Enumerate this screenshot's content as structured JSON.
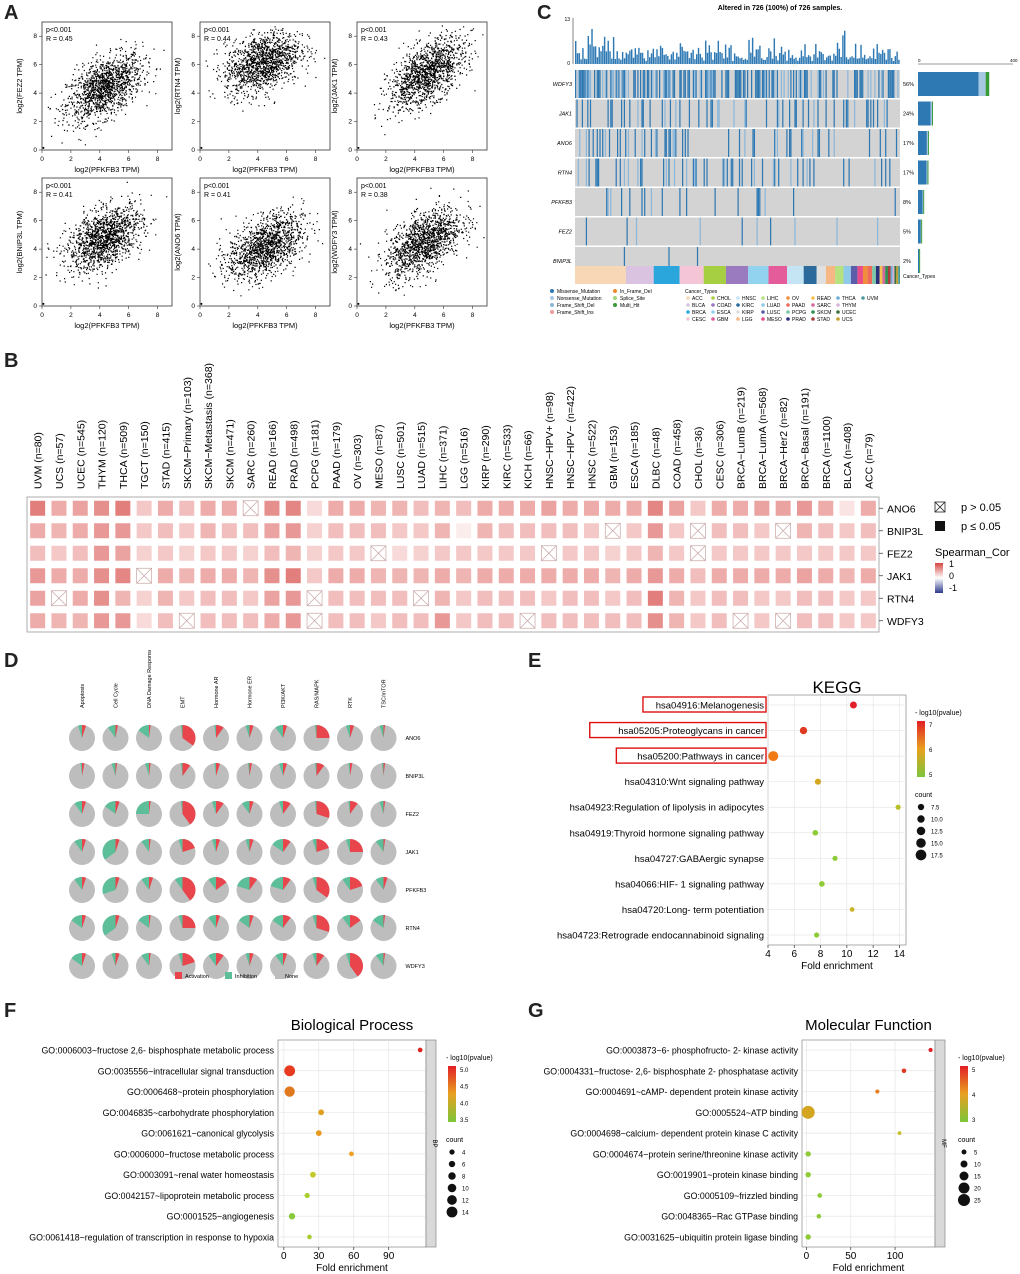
{
  "panel_labels": {
    "A": "A",
    "B": "B",
    "C": "C",
    "D": "D",
    "E": "E",
    "F": "F",
    "G": "G"
  },
  "chart_data": [
    {
      "id": "A",
      "type": "scatter",
      "xlabel": "log2(PFKFB3 TPM)",
      "xlim": [
        0,
        9
      ],
      "ylim": [
        0,
        9
      ],
      "ticks": [
        "0",
        "2",
        "4",
        "6",
        "8"
      ],
      "panels": [
        {
          "ylabel": "log2(FEZ2 TPM)",
          "p": "p<0.001",
          "r": "R = 0.45",
          "center": [
            4.3,
            4.4
          ],
          "slope": 0.45
        },
        {
          "ylabel": "log2(RTN4 TPM)",
          "p": "p<0.001",
          "r": "R = 0.44",
          "center": [
            4.3,
            6.2
          ],
          "slope": 0.3
        },
        {
          "ylabel": "log2(JAK1 TPM)",
          "p": "p<0.001",
          "r": "R = 0.43",
          "center": [
            4.8,
            5.4
          ],
          "slope": 0.55
        },
        {
          "ylabel": "log2(BNIP3L TPM)",
          "p": "p<0.001",
          "r": "R = 0.41",
          "center": [
            4.3,
            4.8
          ],
          "slope": 0.4
        },
        {
          "ylabel": "log2(ANO6 TPM)",
          "p": "p<0.001",
          "r": "R = 0.41",
          "center": [
            4.5,
            4.2
          ],
          "slope": 0.4
        },
        {
          "ylabel": "log2(WDFY3 TPM)",
          "p": "p<0.001",
          "r": "R = 0.38",
          "center": [
            4.6,
            4.5
          ],
          "slope": 0.5
        }
      ]
    },
    {
      "id": "C",
      "type": "heatmap",
      "title": "Altered in 726 (100%) of 726 samples.",
      "top_axis": [
        "13",
        "0"
      ],
      "right_axis": [
        "0",
        "400"
      ],
      "genes": [
        "WDFY3",
        "JAK1",
        "ANO6",
        "RTN4",
        "PFKFB3",
        "FEZ2",
        "BNIP3L"
      ],
      "percents": [
        "56%",
        "24%",
        "17%",
        "17%",
        "8%",
        "5%",
        "2%"
      ],
      "bar_values": [
        300,
        62,
        44,
        42,
        23,
        14,
        5
      ],
      "cancer_types_label": "Cancer_Types",
      "mutation_legend": [
        "Missense_Mutation",
        "In_Frame_Del",
        "Nonsense_Mutation",
        "Splice_Site",
        "Frame_Shift_Del",
        "Multi_Hit",
        "Frame_Shift_Ins"
      ],
      "mutation_colors": [
        "#2e79b4",
        "#f08a2c",
        "#a6c8e3",
        "#9fd57e",
        "#8bb7db",
        "#3a9a3a",
        "#ef9ca0"
      ],
      "cancer_legend_title": "Cancer_Types",
      "cancer_types": [
        "ACC",
        "BLCA",
        "BRCA",
        "CESC",
        "CHOL",
        "COAD",
        "ESCA",
        "GBM",
        "HNSC",
        "KIRC",
        "KIRP",
        "LGG",
        "LIHC",
        "LUAD",
        "LUSC",
        "MESO",
        "OV",
        "PAAD",
        "PCPG",
        "PRAD",
        "READ",
        "SARC",
        "SKCM",
        "STAD",
        "THCA",
        "THYM",
        "UCEC",
        "UCS",
        "UVM"
      ],
      "cancer_colors": [
        "#f7d7b5",
        "#d9c3e0",
        "#2aa6dc",
        "#f4c5d6",
        "#a6d042",
        "#9b7bbf",
        "#92d3f0",
        "#e55c9a",
        "#c5e5f5",
        "#2b6a9a",
        "#e0e0e0",
        "#f5b884",
        "#b5e17e",
        "#8fcbe8",
        "#5b5da8",
        "#e94c8a",
        "#f18e3b",
        "#ee6a5b",
        "#79c9a8",
        "#2c2f7e",
        "#f5c24f",
        "#d06a9e",
        "#2f8f4f",
        "#a83f3f",
        "#6fb0d9",
        "#d7b4d5",
        "#3c6f3c",
        "#c4a030",
        "#4d9b9d"
      ]
    },
    {
      "id": "B",
      "type": "heatmap",
      "cancers": [
        "UVM (n=80)",
        "UCS (n=57)",
        "UCEC (n=545)",
        "THYM (n=120)",
        "THCA (n=509)",
        "TGCT (n=150)",
        "STAD (n=415)",
        "SKCM−Primary (n=103)",
        "SKCM−Metastasis (n=368)",
        "SKCM (n=471)",
        "SARC (n=260)",
        "READ (n=166)",
        "PRAD (n=498)",
        "PCPG (n=181)",
        "PAAD (n=179)",
        "OV (n=303)",
        "MESO (n=87)",
        "LUSC (n=501)",
        "LUAD (n=515)",
        "LIHC (n=371)",
        "LGG (n=516)",
        "KIRP (n=290)",
        "KIRC (n=533)",
        "KICH (n=66)",
        "HNSC−HPV+ (n=98)",
        "HNSC−HPV− (n=422)",
        "HNSC (n=522)",
        "GBM (n=153)",
        "ESCA (n=185)",
        "DLBC (n=48)",
        "COAD (n=458)",
        "CHOL (n=36)",
        "CESC (n=306)",
        "BRCA−LumB (n=219)",
        "BRCA−LumA (n=568)",
        "BRCA−Her2 (n=82)",
        "BRCA−Basal (n=191)",
        "BRCA (n=1100)",
        "BLCA (n=408)",
        "ACC (n=79)"
      ],
      "genes": [
        "ANO6",
        "BNIP3L",
        "FEZ2",
        "JAK1",
        "RTN4",
        "WDFY3"
      ],
      "values": [
        [
          0.7,
          0.45,
          0.5,
          0.6,
          0.7,
          0.3,
          0.45,
          0.35,
          0.45,
          0.45,
          0.0,
          0.6,
          0.65,
          0.2,
          0.45,
          0.45,
          0.4,
          0.4,
          0.35,
          0.4,
          0.35,
          0.45,
          0.45,
          0.45,
          0.5,
          0.45,
          0.45,
          0.45,
          0.45,
          0.65,
          0.5,
          0.3,
          0.45,
          0.45,
          0.5,
          0.5,
          0.55,
          0.45,
          0.15,
          0.45
        ],
        [
          0.45,
          0.4,
          0.45,
          0.55,
          0.55,
          0.3,
          0.35,
          0.3,
          0.4,
          0.35,
          0.35,
          0.5,
          0.55,
          0.25,
          0.35,
          0.35,
          0.35,
          0.3,
          0.3,
          0.4,
          0.1,
          0.4,
          0.35,
          0.35,
          0.35,
          0.35,
          0.3,
          0.0,
          0.3,
          0.55,
          0.3,
          0.0,
          0.35,
          0.35,
          0.3,
          0.0,
          0.4,
          0.35,
          0.3,
          0.35
        ],
        [
          0.35,
          0.3,
          0.35,
          0.55,
          0.5,
          0.25,
          0.3,
          0.25,
          0.3,
          0.3,
          0.25,
          0.35,
          0.4,
          0.25,
          0.3,
          0.3,
          0.0,
          0.2,
          0.25,
          0.3,
          0.3,
          0.3,
          0.3,
          0.3,
          0.0,
          0.3,
          0.3,
          0.25,
          0.3,
          0.4,
          0.3,
          0.0,
          0.3,
          0.3,
          0.3,
          0.3,
          0.3,
          0.3,
          0.3,
          0.3
        ],
        [
          0.55,
          0.45,
          0.45,
          0.6,
          0.65,
          0.0,
          0.45,
          0.4,
          0.45,
          0.45,
          0.4,
          0.6,
          0.7,
          0.3,
          0.45,
          0.45,
          0.4,
          0.4,
          0.4,
          0.45,
          0.4,
          0.45,
          0.45,
          0.45,
          0.45,
          0.45,
          0.45,
          0.4,
          0.45,
          0.55,
          0.45,
          0.35,
          0.45,
          0.45,
          0.45,
          0.45,
          0.5,
          0.45,
          0.4,
          0.45
        ],
        [
          0.5,
          0.0,
          0.45,
          0.6,
          0.4,
          0.25,
          0.4,
          0.3,
          0.35,
          0.35,
          0.3,
          0.5,
          0.55,
          0.0,
          0.35,
          0.35,
          0.35,
          0.35,
          0.0,
          0.4,
          0.3,
          0.35,
          0.35,
          0.35,
          0.3,
          0.35,
          0.35,
          0.3,
          0.35,
          0.7,
          0.4,
          0.3,
          0.35,
          0.35,
          0.3,
          0.3,
          0.35,
          0.35,
          0.3,
          0.3
        ],
        [
          0.45,
          0.4,
          0.4,
          0.55,
          0.55,
          0.2,
          0.35,
          0.0,
          0.35,
          0.35,
          0.35,
          0.45,
          0.55,
          0.0,
          0.35,
          0.35,
          0.3,
          0.35,
          0.35,
          0.55,
          0.3,
          0.35,
          0.35,
          0.0,
          0.35,
          0.35,
          0.35,
          0.35,
          0.35,
          0.6,
          0.4,
          0.3,
          0.35,
          0.0,
          0.3,
          0.0,
          0.35,
          0.35,
          0.3,
          0.3
        ]
      ],
      "nonsig_label": "p > 0.05",
      "sig_label": "p ≤ 0.05",
      "legend_title": "Spearman_Cor",
      "legend_ticks": [
        "1",
        "0",
        "-1"
      ]
    },
    {
      "id": "D",
      "type": "pie",
      "pathways": [
        "Apoptosis",
        "Cell Cycle",
        "DNA Damage Response",
        "EMT",
        "Hormone AR",
        "Hormone ER",
        "PI3K/AKT",
        "RAS/MAPK",
        "RTK",
        "TSC/mTOR"
      ],
      "genes": [
        "ANO6",
        "BNIP3L",
        "FEZ2",
        "JAK1",
        "PFKFB3",
        "RTN4",
        "WDFY3"
      ],
      "activation": [
        [
          0.05,
          0.03,
          0.02,
          0.35,
          0.1,
          0.05,
          0.05,
          0.25,
          0.05,
          0.02
        ],
        [
          0.03,
          0.02,
          0.02,
          0.1,
          0.05,
          0.03,
          0.05,
          0.1,
          0.03,
          0.02
        ],
        [
          0.05,
          0.05,
          0.02,
          0.4,
          0.1,
          0.05,
          0.1,
          0.3,
          0.1,
          0.02
        ],
        [
          0.05,
          0.05,
          0.02,
          0.2,
          0.05,
          0.05,
          0.1,
          0.2,
          0.25,
          0.02
        ],
        [
          0.05,
          0.05,
          0.05,
          0.4,
          0.15,
          0.1,
          0.1,
          0.35,
          0.2,
          0.05
        ],
        [
          0.05,
          0.05,
          0.02,
          0.25,
          0.05,
          0.05,
          0.1,
          0.3,
          0.15,
          0.02
        ],
        [
          0.05,
          0.05,
          0.02,
          0.2,
          0.1,
          0.05,
          0.05,
          0.1,
          0.4,
          0.02
        ]
      ],
      "inhibition": [
        [
          0.05,
          0.1,
          0.15,
          0.02,
          0.02,
          0.05,
          0.1,
          0.02,
          0.05,
          0.05
        ],
        [
          0.02,
          0.05,
          0.05,
          0.02,
          0.02,
          0.02,
          0.05,
          0.02,
          0.02,
          0.02
        ],
        [
          0.1,
          0.15,
          0.25,
          0.02,
          0.05,
          0.1,
          0.05,
          0.02,
          0.02,
          0.05
        ],
        [
          0.1,
          0.35,
          0.1,
          0.05,
          0.05,
          0.05,
          0.15,
          0.05,
          0.05,
          0.1
        ],
        [
          0.1,
          0.3,
          0.1,
          0.1,
          0.1,
          0.2,
          0.2,
          0.05,
          0.1,
          0.1
        ],
        [
          0.15,
          0.35,
          0.15,
          0.05,
          0.1,
          0.15,
          0.15,
          0.05,
          0.1,
          0.15
        ],
        [
          0.15,
          0.05,
          0.1,
          0.05,
          0.1,
          0.05,
          0.1,
          0.05,
          0.05,
          0.1
        ]
      ],
      "legend": [
        "Activation",
        "Inhibition",
        "None"
      ],
      "colors": {
        "activation": "#e8454d",
        "inhibition": "#5dbf9a",
        "none": "#bdbdbd"
      }
    },
    {
      "id": "E",
      "type": "scatter",
      "title": "KEGG",
      "xlabel": "Fold enrichment",
      "xlim": [
        4,
        14.5
      ],
      "xticks": [
        4,
        6,
        8,
        10,
        12,
        14
      ],
      "terms": [
        "hsa04916:Melanogenesis",
        "hsa05205:Proteoglycans in cancer",
        "hsa05200:Pathways in cancer",
        "hsa04310:Wnt signaling pathway",
        "hsa04923:Regulation of lipolysis in adipocytes",
        "hsa04919:Thyroid hormone signaling pathway",
        "hsa04727:GABAergic synapse",
        "hsa04066:HIF- 1 signaling pathway",
        "hsa04720:Long- term potentiation",
        "hsa04723:Retrograde endocannabinoid signaling"
      ],
      "highlighted": [
        true,
        true,
        true,
        false,
        false,
        false,
        false,
        false,
        false,
        false
      ],
      "x": [
        10.5,
        6.7,
        4.4,
        7.8,
        13.9,
        7.6,
        9.1,
        8.1,
        10.4,
        7.7
      ],
      "count": [
        9,
        10,
        16,
        7,
        5,
        6,
        5,
        6,
        4,
        5
      ],
      "color": [
        "#e21f26",
        "#e03a22",
        "#f07a14",
        "#d4a520",
        "#b8c028",
        "#8ecb36",
        "#8ecb36",
        "#8ecb36",
        "#c9b52a",
        "#8ecb36"
      ],
      "legend_title": "- log10(pvalue)",
      "legend_ticks": [
        "7",
        "6",
        "5"
      ],
      "size_title": "count",
      "size_ticks": [
        "7.5",
        "10.0",
        "12.5",
        "15.0",
        "17.5"
      ]
    },
    {
      "id": "F",
      "type": "scatter",
      "title": "Biological Process",
      "xlabel": "Fold enrichment",
      "xlim": [
        -5,
        122
      ],
      "xticks": [
        0,
        30,
        60,
        90
      ],
      "strip": "BP",
      "terms": [
        "GO:0006003~fructose 2,6- bisphosphate metabolic process",
        "GO:0035556~intracellular signal transduction",
        "GO:0006468~protein phosphorylation",
        "GO:0046835~carbohydrate phosphorylation",
        "GO:0061621~canonical glycolysis",
        "GO:0006000~fructose metabolic process",
        "GO:0003091~renal water homeostasis",
        "GO:0042157~lipoprotein metabolic process",
        "GO:0001525~angiogenesis",
        "GO:0061418~regulation of transcription  in response to hypoxia"
      ],
      "x": [
        117,
        5,
        5,
        32,
        30,
        58,
        25,
        20,
        7,
        22
      ],
      "count": [
        3,
        14,
        13,
        5,
        5,
        3,
        5,
        4,
        6,
        3
      ],
      "color": [
        "#e0221f",
        "#e83a1e",
        "#e0781e",
        "#e0a020",
        "#e89a20",
        "#f0a020",
        "#c4c82a",
        "#aacd30",
        "#88c93a",
        "#aacd30"
      ],
      "legend_title": "- log10(pvalue)",
      "legend_ticks": [
        "5.0",
        "4.5",
        "4.0",
        "3.5"
      ],
      "size_title": "count",
      "size_ticks": [
        "4",
        "6",
        "8",
        "10",
        "12",
        "14"
      ]
    },
    {
      "id": "G",
      "type": "scatter",
      "title": "Molecular Function",
      "xlabel": "Fold enrichment",
      "xlim": [
        -5,
        145
      ],
      "xticks": [
        0,
        50,
        100
      ],
      "strip": "MF",
      "terms": [
        "GO:0003873~6- phosphofructo- 2- kinase activity",
        "GO:0004331~fructose- 2,6- bisphosphate 2- phosphatase activity",
        "GO:0004691~cAMP- dependent protein kinase activity",
        "GO:0005524~ATP binding",
        "GO:0004698~calcium- dependent protein kinase C activity",
        "GO:0004674~protein serine/threonine kinase activity",
        "GO:0019901~protein kinase binding",
        "GO:0005109~frizzled binding",
        "GO:0048365~Rac GTPase binding",
        "GO:0031625~ubiquitin protein ligase binding"
      ],
      "x": [
        140,
        110,
        80,
        2,
        105,
        2,
        2,
        15,
        14,
        2
      ],
      "count": [
        3,
        4,
        3,
        25,
        2,
        6,
        6,
        4,
        4,
        6
      ],
      "color": [
        "#e21f26",
        "#e03a22",
        "#e8801e",
        "#d4a520",
        "#c6c02a",
        "#8ecb36",
        "#8ecb36",
        "#8ecb36",
        "#8ecb36",
        "#8ecb36"
      ],
      "legend_title": "- log10(pvalue)",
      "legend_ticks": [
        "5",
        "4",
        "3"
      ],
      "size_title": "count",
      "size_ticks": [
        "5",
        "10",
        "15",
        "20",
        "25"
      ]
    }
  ]
}
